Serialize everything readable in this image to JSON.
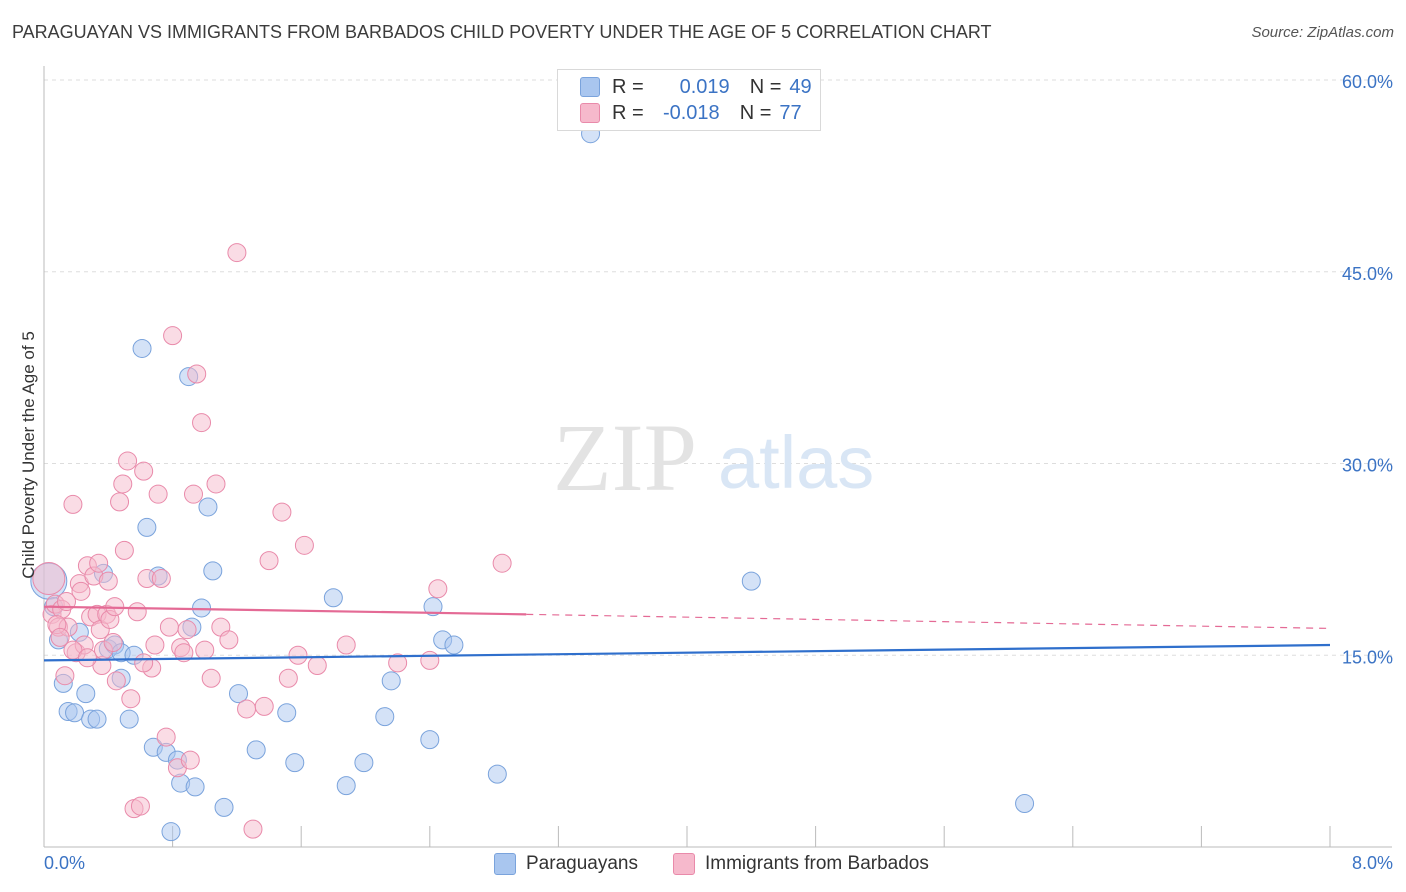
{
  "title": "PARAGUAYAN VS IMMIGRANTS FROM BARBADOS CHILD POVERTY UNDER THE AGE OF 5 CORRELATION CHART",
  "source": "Source: ZipAtlas.com",
  "watermark": {
    "zip": "ZIP",
    "atlas": "atlas"
  },
  "legend_top": [
    {
      "r_label": "R =",
      "r_value": "0.019",
      "n_label": "N =",
      "n_value": "49"
    },
    {
      "r_label": "R =",
      "r_value": "-0.018",
      "n_label": "N =",
      "n_value": "77"
    }
  ],
  "legend_bottom": [
    "Paraguayans",
    "Immigrants from Barbados"
  ],
  "colors": {
    "blue_fill": "#a9c6ef",
    "blue_stroke": "#7aa3dc",
    "blue_line": "#2f6fcc",
    "pink_fill": "#f6b9cc",
    "pink_stroke": "#e98aaa",
    "pink_line": "#e46a95",
    "grid": "#dddddd",
    "tick_label": "#3b73c4",
    "axis": "#bbbbbb"
  },
  "chart_data": {
    "type": "scatter",
    "title": "PARAGUAYAN VS IMMIGRANTS FROM BARBADOS CHILD POVERTY UNDER THE AGE OF 5 CORRELATION CHART",
    "xlabel": "",
    "ylabel": "Child Poverty Under the Age of 5",
    "xlim": [
      0,
      8
    ],
    "ylim": [
      0,
      60
    ],
    "x_tick_labels": [
      "0.0%",
      "8.0%"
    ],
    "y_ticks": [
      15,
      30,
      45,
      60
    ],
    "y_tick_labels": [
      "15.0%",
      "30.0%",
      "45.0%",
      "60.0%"
    ],
    "grid": true,
    "series": [
      {
        "name": "Paraguayans",
        "color": "blue",
        "r": 0.019,
        "n": 49,
        "trend": {
          "x0": 0,
          "y0": 14.6,
          "x1": 8,
          "y1": 15.8
        },
        "points": [
          [
            0.03,
            20.8,
            18
          ],
          [
            0.06,
            18.8,
            9
          ],
          [
            0.09,
            16.2,
            9
          ],
          [
            0.12,
            12.8,
            9
          ],
          [
            0.15,
            10.6,
            9
          ],
          [
            0.19,
            10.5,
            9
          ],
          [
            0.22,
            16.8,
            9
          ],
          [
            0.26,
            12.0,
            9
          ],
          [
            0.29,
            10.0,
            9
          ],
          [
            0.33,
            10.0,
            9
          ],
          [
            0.37,
            21.4,
            9
          ],
          [
            0.4,
            15.5,
            9
          ],
          [
            0.44,
            15.8,
            9
          ],
          [
            0.48,
            13.2,
            9
          ],
          [
            0.48,
            15.2,
            9
          ],
          [
            0.53,
            10.0,
            9
          ],
          [
            0.56,
            15.0,
            9
          ],
          [
            0.61,
            39.0,
            9
          ],
          [
            0.64,
            25.0,
            9
          ],
          [
            0.68,
            7.8,
            9
          ],
          [
            0.71,
            21.2,
            9
          ],
          [
            0.76,
            7.4,
            9
          ],
          [
            0.79,
            1.2,
            9
          ],
          [
            0.83,
            6.8,
            9
          ],
          [
            0.85,
            5.0,
            9
          ],
          [
            0.9,
            36.8,
            9
          ],
          [
            0.92,
            17.2,
            9
          ],
          [
            0.94,
            4.7,
            9
          ],
          [
            0.98,
            18.7,
            9
          ],
          [
            1.02,
            26.6,
            9
          ],
          [
            1.05,
            21.6,
            9
          ],
          [
            1.12,
            3.1,
            9
          ],
          [
            1.21,
            12.0,
            9
          ],
          [
            1.32,
            7.6,
            9
          ],
          [
            1.51,
            10.5,
            9
          ],
          [
            1.56,
            6.6,
            9
          ],
          [
            1.8,
            19.5,
            9
          ],
          [
            1.88,
            4.8,
            9
          ],
          [
            1.99,
            6.6,
            9
          ],
          [
            2.12,
            10.2,
            9
          ],
          [
            2.16,
            13.0,
            9
          ],
          [
            2.4,
            8.4,
            9
          ],
          [
            2.42,
            18.8,
            9
          ],
          [
            2.48,
            16.2,
            9
          ],
          [
            2.55,
            15.8,
            9
          ],
          [
            2.82,
            5.7,
            9
          ],
          [
            3.4,
            55.8,
            9
          ],
          [
            4.4,
            20.8,
            9
          ],
          [
            6.1,
            3.4,
            9
          ]
        ]
      },
      {
        "name": "Immigrants from Barbados",
        "color": "pink",
        "r": -0.018,
        "n": 77,
        "trend": {
          "x0": 0,
          "y0": 18.8,
          "x1": 3.0,
          "y1": 18.2,
          "dash_x1": 8,
          "dash_y1": 17.1
        },
        "points": [
          [
            0.03,
            21.0,
            16
          ],
          [
            0.05,
            18.2,
            9
          ],
          [
            0.07,
            19.0,
            9
          ],
          [
            0.09,
            17.2,
            9
          ],
          [
            0.11,
            18.6,
            9
          ],
          [
            0.13,
            13.4,
            9
          ],
          [
            0.15,
            17.2,
            9
          ],
          [
            0.18,
            26.8,
            9
          ],
          [
            0.2,
            15.2,
            9
          ],
          [
            0.22,
            20.6,
            9
          ],
          [
            0.23,
            20.0,
            9
          ],
          [
            0.25,
            15.8,
            9
          ],
          [
            0.27,
            22.0,
            9
          ],
          [
            0.29,
            18.0,
            9
          ],
          [
            0.31,
            21.2,
            9
          ],
          [
            0.33,
            18.2,
            9
          ],
          [
            0.35,
            17.0,
            9
          ],
          [
            0.36,
            14.2,
            9
          ],
          [
            0.37,
            15.4,
            9
          ],
          [
            0.39,
            18.2,
            9
          ],
          [
            0.4,
            20.8,
            9
          ],
          [
            0.41,
            17.8,
            9
          ],
          [
            0.43,
            16.0,
            9
          ],
          [
            0.45,
            13.0,
            9
          ],
          [
            0.47,
            27.0,
            9
          ],
          [
            0.49,
            28.4,
            9
          ],
          [
            0.5,
            23.2,
            9
          ],
          [
            0.52,
            30.2,
            9
          ],
          [
            0.54,
            11.6,
            9
          ],
          [
            0.56,
            3.0,
            9
          ],
          [
            0.58,
            18.4,
            9
          ],
          [
            0.6,
            3.2,
            9
          ],
          [
            0.62,
            29.4,
            9
          ],
          [
            0.64,
            21.0,
            9
          ],
          [
            0.67,
            14.0,
            9
          ],
          [
            0.69,
            15.8,
            9
          ],
          [
            0.71,
            27.6,
            9
          ],
          [
            0.73,
            21.0,
            9
          ],
          [
            0.76,
            8.6,
            9
          ],
          [
            0.78,
            17.2,
            9
          ],
          [
            0.8,
            40.0,
            9
          ],
          [
            0.83,
            6.2,
            9
          ],
          [
            0.85,
            15.6,
            9
          ],
          [
            0.87,
            15.2,
            9
          ],
          [
            0.89,
            17.0,
            9
          ],
          [
            0.91,
            6.8,
            9
          ],
          [
            0.93,
            27.6,
            9
          ],
          [
            0.95,
            37.0,
            9
          ],
          [
            0.98,
            33.2,
            9
          ],
          [
            1.0,
            15.4,
            9
          ],
          [
            1.04,
            13.2,
            9
          ],
          [
            1.07,
            28.4,
            9
          ],
          [
            1.1,
            17.2,
            9
          ],
          [
            1.15,
            16.2,
            9
          ],
          [
            1.2,
            46.5,
            9
          ],
          [
            1.26,
            10.8,
            9
          ],
          [
            1.3,
            1.4,
            9
          ],
          [
            1.37,
            11.0,
            9
          ],
          [
            1.4,
            22.4,
            9
          ],
          [
            1.48,
            26.2,
            9
          ],
          [
            1.52,
            13.2,
            9
          ],
          [
            1.58,
            15.0,
            9
          ],
          [
            1.62,
            23.6,
            9
          ],
          [
            1.7,
            14.2,
            9
          ],
          [
            1.88,
            15.8,
            9
          ],
          [
            2.2,
            14.4,
            9
          ],
          [
            2.4,
            14.6,
            9
          ],
          [
            2.45,
            20.2,
            9
          ],
          [
            2.85,
            22.2,
            9
          ],
          [
            0.34,
            22.2,
            9
          ],
          [
            0.44,
            18.8,
            9
          ],
          [
            0.18,
            15.4,
            9
          ],
          [
            0.27,
            14.8,
            9
          ],
          [
            0.62,
            14.4,
            9
          ],
          [
            0.08,
            17.4,
            9
          ],
          [
            0.1,
            16.4,
            9
          ],
          [
            0.14,
            19.2,
            9
          ]
        ]
      }
    ]
  }
}
